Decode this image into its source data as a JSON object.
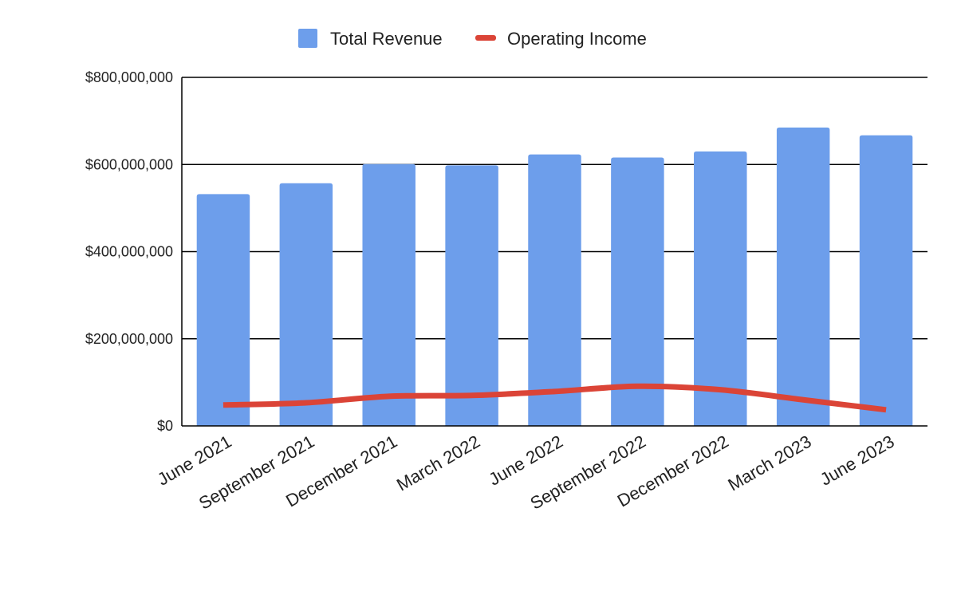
{
  "chart_data": {
    "type": "bar",
    "title": "",
    "xlabel": "",
    "ylabel": "",
    "categories": [
      "June 2021",
      "September 2021",
      "December 2021",
      "March 2022",
      "June 2022",
      "September 2022",
      "December 2022",
      "March 2023",
      "June 2023"
    ],
    "series": [
      {
        "name": "Total Revenue",
        "type": "bar",
        "color": "#6d9eeb",
        "values": [
          532000000,
          557000000,
          601000000,
          598000000,
          623000000,
          616000000,
          630000000,
          685000000,
          667000000
        ]
      },
      {
        "name": "Operating Income",
        "type": "line",
        "smooth": true,
        "color": "#db4437",
        "values": [
          48000000,
          53000000,
          68000000,
          70000000,
          79000000,
          91000000,
          83000000,
          60000000,
          37000000
        ]
      }
    ],
    "ylim": [
      0,
      800000000
    ],
    "yticks": [
      0,
      200000000,
      400000000,
      600000000,
      800000000
    ],
    "ytick_labels": [
      "$0",
      "$200,000,000",
      "$400,000,000",
      "$600,000,000",
      "$800,000,000"
    ],
    "grid": true,
    "legend_position": "top"
  }
}
